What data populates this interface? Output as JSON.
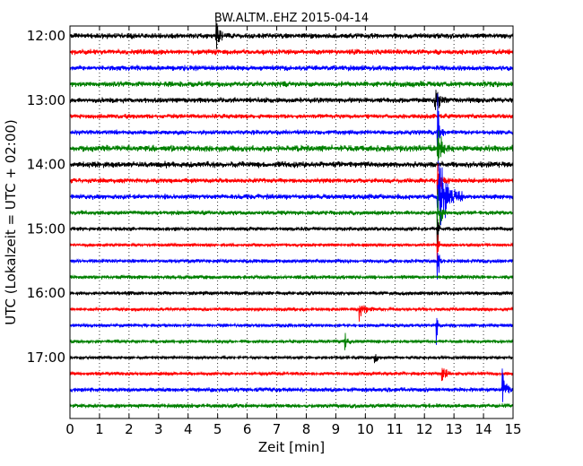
{
  "chart_data": {
    "type": "line",
    "title": "BW.ALTM..EHZ 2015-04-14",
    "xlabel": "Zeit  [min]",
    "ylabel": "UTC (Lokalzeit = UTC + 02:00)",
    "xlim": [
      0,
      15
    ],
    "x_ticks": [
      "0",
      "1",
      "2",
      "3",
      "4",
      "5",
      "6",
      "7",
      "8",
      "9",
      "10",
      "11",
      "12",
      "13",
      "14",
      "15"
    ],
    "y_ticks": [
      "12:00",
      "13:00",
      "14:00",
      "15:00",
      "16:00",
      "17:00"
    ],
    "grid": "dotted vertical",
    "trace_interval_min": 15,
    "trace_colors": [
      "#000000",
      "#ff0000",
      "#0000ff",
      "#008000"
    ],
    "traces": [
      {
        "start": "12:00",
        "noise": 0.55,
        "events": [
          {
            "t": 4.95,
            "amp": 1.4,
            "dur": 0.35
          }
        ]
      },
      {
        "start": "12:15",
        "noise": 0.55,
        "events": []
      },
      {
        "start": "12:30",
        "noise": 0.55,
        "events": []
      },
      {
        "start": "12:45",
        "noise": 0.6,
        "events": []
      },
      {
        "start": "13:00",
        "noise": 0.55,
        "events": [
          {
            "t": 12.35,
            "amp": 1.2,
            "dur": 0.4
          }
        ]
      },
      {
        "start": "13:15",
        "noise": 0.5,
        "events": []
      },
      {
        "start": "13:30",
        "noise": 0.5,
        "events": [
          {
            "t": 12.45,
            "amp": 3.4,
            "dur": 0.2
          }
        ]
      },
      {
        "start": "13:45",
        "noise": 0.65,
        "events": [
          {
            "t": 12.45,
            "amp": 1.6,
            "dur": 0.4
          }
        ]
      },
      {
        "start": "14:00",
        "noise": 0.65,
        "events": []
      },
      {
        "start": "14:15",
        "noise": 0.5,
        "events": [
          {
            "t": 12.45,
            "amp": 1.5,
            "dur": 0.4
          }
        ]
      },
      {
        "start": "14:30",
        "noise": 0.55,
        "events": [
          {
            "t": 12.45,
            "amp": 3.6,
            "dur": 0.9
          }
        ]
      },
      {
        "start": "14:45",
        "noise": 0.45,
        "events": [
          {
            "t": 12.45,
            "amp": 2.2,
            "dur": 0.3
          }
        ]
      },
      {
        "start": "15:00",
        "noise": 0.4,
        "events": [
          {
            "t": 12.45,
            "amp": 2.2,
            "dur": 0.1
          }
        ]
      },
      {
        "start": "15:15",
        "noise": 0.35,
        "events": [
          {
            "t": 12.45,
            "amp": 2.2,
            "dur": 0.1
          }
        ]
      },
      {
        "start": "15:30",
        "noise": 0.4,
        "events": [
          {
            "t": 12.45,
            "amp": 1.8,
            "dur": 0.15
          }
        ]
      },
      {
        "start": "15:45",
        "noise": 0.4,
        "events": []
      },
      {
        "start": "16:00",
        "noise": 0.4,
        "events": []
      },
      {
        "start": "16:15",
        "noise": 0.35,
        "events": [
          {
            "t": 9.8,
            "amp": 1.0,
            "dur": 0.5
          }
        ]
      },
      {
        "start": "16:30",
        "noise": 0.35,
        "events": [
          {
            "t": 12.4,
            "amp": 1.5,
            "dur": 0.1
          }
        ]
      },
      {
        "start": "16:45",
        "noise": 0.35,
        "events": [
          {
            "t": 9.3,
            "amp": 0.8,
            "dur": 0.2
          }
        ]
      },
      {
        "start": "17:00",
        "noise": 0.3,
        "events": [
          {
            "t": 10.3,
            "amp": 0.6,
            "dur": 0.3
          }
        ]
      },
      {
        "start": "17:15",
        "noise": 0.35,
        "events": [
          {
            "t": 12.6,
            "amp": 0.9,
            "dur": 0.3
          }
        ]
      },
      {
        "start": "17:30",
        "noise": 0.45,
        "events": [
          {
            "t": 14.65,
            "amp": 1.5,
            "dur": 0.3
          }
        ]
      },
      {
        "start": "17:45",
        "noise": 0.45,
        "events": []
      }
    ]
  }
}
